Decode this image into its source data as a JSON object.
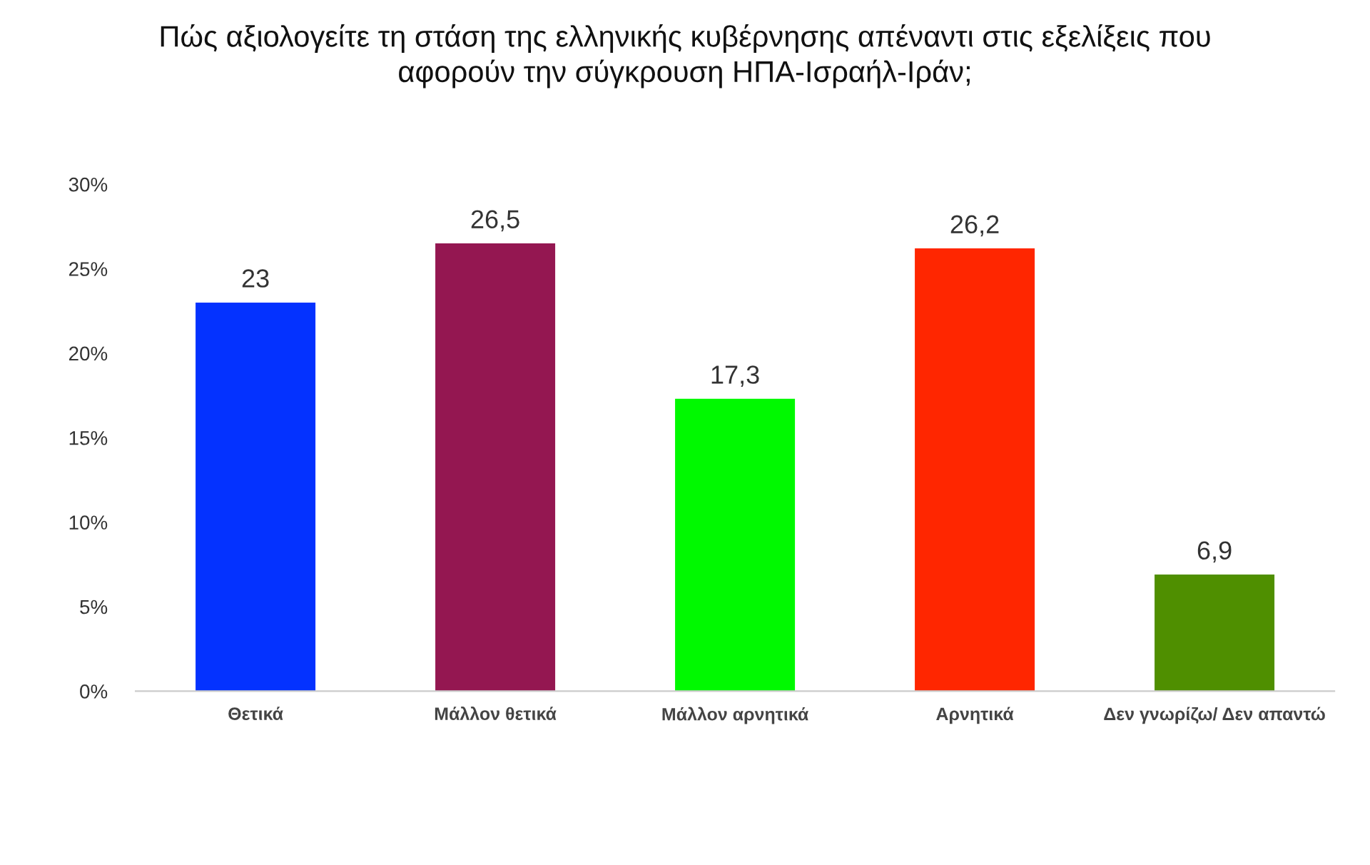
{
  "chart_data": {
    "type": "bar",
    "title": "Πώς αξιολογείτε τη στάση της ελληνικής κυβέρνησης απέναντι στις εξελίξεις που\nαφορούν την σύγκρουση ΗΠΑ-Ισραήλ-Ιράν;",
    "categories": [
      "Θετικά",
      "Μάλλον θετικά",
      "Μάλλον αρνητικά",
      "Αρνητικά",
      "Δεν γνωρίζω/ Δεν απαντώ"
    ],
    "values": [
      23,
      26.5,
      17.3,
      26.2,
      6.9
    ],
    "value_labels": [
      "23",
      "26,5",
      "17,3",
      "26,2",
      "6,9"
    ],
    "colors": [
      "#0432ff",
      "#941751",
      "#00f900",
      "#ff2600",
      "#4f8f00"
    ],
    "ylim": [
      0,
      30
    ],
    "yticks": [
      {
        "value": 0,
        "label": "0%"
      },
      {
        "value": 5,
        "label": "5%"
      },
      {
        "value": 10,
        "label": "10%"
      },
      {
        "value": 15,
        "label": "15%"
      },
      {
        "value": 20,
        "label": "20%"
      },
      {
        "value": 25,
        "label": "25%"
      },
      {
        "value": 30,
        "label": "30%"
      }
    ]
  }
}
